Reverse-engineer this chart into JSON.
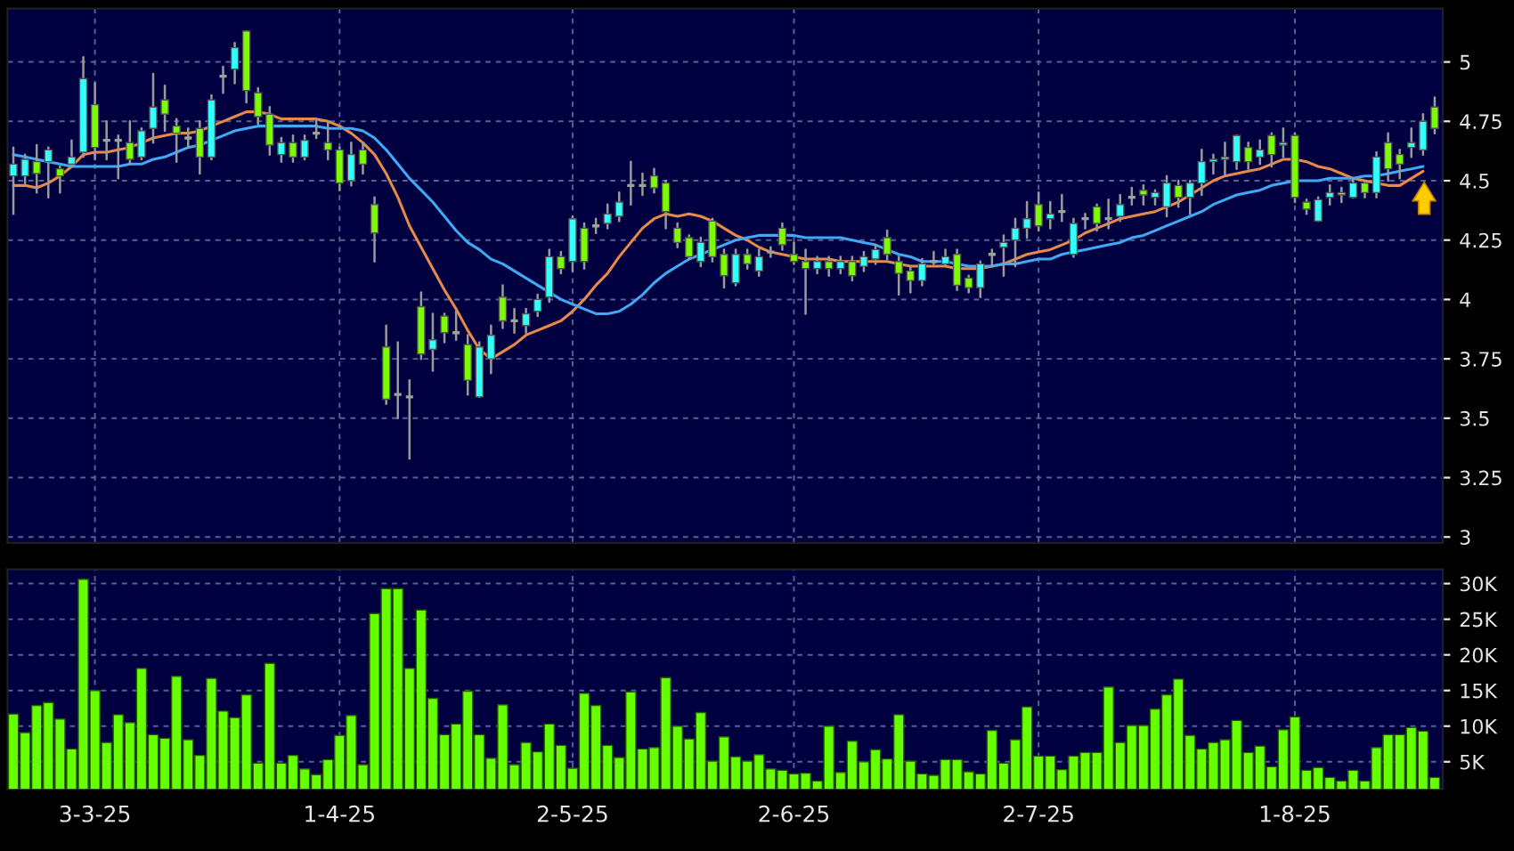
{
  "chart_data": [
    {
      "type": "candlestick",
      "categories": [
        null,
        null,
        null,
        null,
        null,
        null,
        null,
        null,
        null,
        null,
        null,
        null,
        null,
        null,
        null,
        null,
        null,
        null,
        null,
        null,
        null,
        null,
        null,
        null,
        null,
        null,
        null,
        null,
        null,
        null,
        null,
        null,
        null,
        null,
        null,
        null,
        null,
        null,
        null,
        null,
        null,
        null,
        null,
        null,
        null,
        null,
        null,
        null,
        null,
        null,
        null,
        null,
        null,
        null,
        null,
        null,
        null,
        null,
        null,
        null,
        null,
        null,
        null,
        null,
        null,
        null,
        null,
        null,
        null,
        null,
        null,
        null,
        null,
        null,
        null,
        null,
        null,
        null,
        null,
        null,
        null,
        null,
        null,
        null,
        null,
        null,
        null,
        null,
        null,
        null,
        null,
        null,
        null,
        null,
        null,
        null,
        null,
        null,
        null,
        null,
        null,
        null,
        null,
        null,
        null,
        null,
        null,
        null,
        null,
        null,
        null,
        null,
        null,
        null,
        null,
        null,
        null,
        null,
        null,
        null,
        null,
        null,
        null
      ],
      "ohlc": [
        [
          4.52,
          4.64,
          4.36,
          4.57
        ],
        [
          4.52,
          4.61,
          4.49,
          4.59
        ],
        [
          4.58,
          4.65,
          4.45,
          4.53
        ],
        [
          4.58,
          4.64,
          4.43,
          4.63
        ],
        [
          4.55,
          4.56,
          4.45,
          4.52
        ],
        [
          4.57,
          4.67,
          4.56,
          4.6
        ],
        [
          4.62,
          5.02,
          4.6,
          4.93
        ],
        [
          4.82,
          4.91,
          4.59,
          4.64
        ],
        [
          4.67,
          4.75,
          4.59,
          4.67
        ],
        [
          4.67,
          4.69,
          4.51,
          4.67
        ],
        [
          4.66,
          4.75,
          4.57,
          4.59
        ],
        [
          4.6,
          4.72,
          4.59,
          4.71
        ],
        [
          4.72,
          4.95,
          4.66,
          4.81
        ],
        [
          4.84,
          4.9,
          4.71,
          4.78
        ],
        [
          4.73,
          4.76,
          4.58,
          4.7
        ],
        [
          4.68,
          4.72,
          4.64,
          4.68
        ],
        [
          4.72,
          4.75,
          4.53,
          4.6
        ],
        [
          4.6,
          4.86,
          4.59,
          4.84
        ],
        [
          4.94,
          4.98,
          4.87,
          4.94
        ],
        [
          4.97,
          5.08,
          4.91,
          5.06
        ],
        [
          5.13,
          5.13,
          4.83,
          4.88
        ],
        [
          4.87,
          4.89,
          4.74,
          4.77
        ],
        [
          4.78,
          4.81,
          4.61,
          4.65
        ],
        [
          4.61,
          4.68,
          4.58,
          4.66
        ],
        [
          4.66,
          4.69,
          4.58,
          4.6
        ],
        [
          4.6,
          4.69,
          4.59,
          4.67
        ],
        [
          4.7,
          4.76,
          4.68,
          4.7
        ],
        [
          4.66,
          4.75,
          4.59,
          4.63
        ],
        [
          4.63,
          4.64,
          4.46,
          4.49
        ],
        [
          4.5,
          4.66,
          4.48,
          4.61
        ],
        [
          4.63,
          4.66,
          4.53,
          4.57
        ],
        [
          4.4,
          4.43,
          4.16,
          4.28
        ],
        [
          3.8,
          3.89,
          3.56,
          3.58
        ],
        [
          3.6,
          3.82,
          3.5,
          3.6
        ],
        [
          3.59,
          3.66,
          3.33,
          3.59
        ],
        [
          3.97,
          4.03,
          3.75,
          3.77
        ],
        [
          3.79,
          3.94,
          3.7,
          3.83
        ],
        [
          3.93,
          3.94,
          3.82,
          3.86
        ],
        [
          3.86,
          3.95,
          3.83,
          3.86
        ],
        [
          3.81,
          3.85,
          3.6,
          3.66
        ],
        [
          3.59,
          3.82,
          3.59,
          3.8
        ],
        [
          3.75,
          3.89,
          3.69,
          3.85
        ],
        [
          4.01,
          4.06,
          3.88,
          3.91
        ],
        [
          3.91,
          3.96,
          3.86,
          3.91
        ],
        [
          3.89,
          3.96,
          3.86,
          3.94
        ],
        [
          3.95,
          4.02,
          3.93,
          4.0
        ],
        [
          4.01,
          4.21,
          3.99,
          4.18
        ],
        [
          4.18,
          4.2,
          4.11,
          4.13
        ],
        [
          4.16,
          4.35,
          4.12,
          4.34
        ],
        [
          4.3,
          4.32,
          4.13,
          4.16
        ],
        [
          4.31,
          4.34,
          4.28,
          4.31
        ],
        [
          4.32,
          4.4,
          4.3,
          4.36
        ],
        [
          4.35,
          4.45,
          4.33,
          4.41
        ],
        [
          4.48,
          4.58,
          4.4,
          4.48
        ],
        [
          4.48,
          4.53,
          4.44,
          4.48
        ],
        [
          4.52,
          4.55,
          4.45,
          4.47
        ],
        [
          4.49,
          4.5,
          4.3,
          4.37
        ],
        [
          4.3,
          4.32,
          4.22,
          4.24
        ],
        [
          4.26,
          4.27,
          4.17,
          4.18
        ],
        [
          4.16,
          4.26,
          4.14,
          4.24
        ],
        [
          4.33,
          4.34,
          4.16,
          4.18
        ],
        [
          4.19,
          4.21,
          4.05,
          4.1
        ],
        [
          4.07,
          4.21,
          4.06,
          4.19
        ],
        [
          4.19,
          4.21,
          4.13,
          4.15
        ],
        [
          4.12,
          4.21,
          4.1,
          4.18
        ],
        [
          4.2,
          4.22,
          4.18,
          4.2
        ],
        [
          4.3,
          4.32,
          4.21,
          4.23
        ],
        [
          4.19,
          4.24,
          4.15,
          4.16
        ],
        [
          4.16,
          4.21,
          3.94,
          4.13
        ],
        [
          4.13,
          4.18,
          4.11,
          4.16
        ],
        [
          4.16,
          4.18,
          4.1,
          4.13
        ],
        [
          4.13,
          4.18,
          4.11,
          4.16
        ],
        [
          4.16,
          4.18,
          4.08,
          4.1
        ],
        [
          4.14,
          4.2,
          4.12,
          4.18
        ],
        [
          4.17,
          4.23,
          4.15,
          4.21
        ],
        [
          4.26,
          4.29,
          4.17,
          4.19
        ],
        [
          4.16,
          4.18,
          4.02,
          4.11
        ],
        [
          4.12,
          4.14,
          4.03,
          4.08
        ],
        [
          4.08,
          4.17,
          4.06,
          4.15
        ],
        [
          4.16,
          4.2,
          4.15,
          4.16
        ],
        [
          4.15,
          4.21,
          4.14,
          4.18
        ],
        [
          4.19,
          4.21,
          4.04,
          4.06
        ],
        [
          4.09,
          4.1,
          4.03,
          4.05
        ],
        [
          4.05,
          4.16,
          4.01,
          4.15
        ],
        [
          4.19,
          4.21,
          4.14,
          4.19
        ],
        [
          4.22,
          4.27,
          4.1,
          4.24
        ],
        [
          4.25,
          4.34,
          4.14,
          4.3
        ],
        [
          4.3,
          4.41,
          4.26,
          4.34
        ],
        [
          4.4,
          4.45,
          4.29,
          4.31
        ],
        [
          4.34,
          4.41,
          4.3,
          4.36
        ],
        [
          4.37,
          4.44,
          4.33,
          4.37
        ],
        [
          4.19,
          4.34,
          4.18,
          4.32
        ],
        [
          4.34,
          4.36,
          4.3,
          4.34
        ],
        [
          4.39,
          4.4,
          4.29,
          4.32
        ],
        [
          4.34,
          4.42,
          4.3,
          4.34
        ],
        [
          4.35,
          4.44,
          4.33,
          4.4
        ],
        [
          4.43,
          4.47,
          4.4,
          4.43
        ],
        [
          4.46,
          4.48,
          4.4,
          4.44
        ],
        [
          4.43,
          4.46,
          4.4,
          4.45
        ],
        [
          4.39,
          4.52,
          4.35,
          4.49
        ],
        [
          4.48,
          4.5,
          4.39,
          4.43
        ],
        [
          4.43,
          4.5,
          4.36,
          4.49
        ],
        [
          4.49,
          4.63,
          4.44,
          4.58
        ],
        [
          4.58,
          4.61,
          4.53,
          4.59
        ],
        [
          4.59,
          4.66,
          4.52,
          4.6
        ],
        [
          4.58,
          4.69,
          4.55,
          4.69
        ],
        [
          4.64,
          4.66,
          4.55,
          4.58
        ],
        [
          4.6,
          4.67,
          4.57,
          4.63
        ],
        [
          4.69,
          4.7,
          4.56,
          4.61
        ],
        [
          4.65,
          4.72,
          4.6,
          4.66
        ],
        [
          4.69,
          4.7,
          4.41,
          4.43
        ],
        [
          4.41,
          4.42,
          4.36,
          4.38
        ],
        [
          4.33,
          4.43,
          4.33,
          4.42
        ],
        [
          4.43,
          4.48,
          4.4,
          4.45
        ],
        [
          4.45,
          4.47,
          4.41,
          4.44
        ],
        [
          4.43,
          4.51,
          4.43,
          4.49
        ],
        [
          4.49,
          4.5,
          4.43,
          4.45
        ],
        [
          4.45,
          4.62,
          4.43,
          4.6
        ],
        [
          4.66,
          4.7,
          4.5,
          4.55
        ],
        [
          4.61,
          4.63,
          4.51,
          4.57
        ],
        [
          4.64,
          4.72,
          4.6,
          4.66
        ],
        [
          4.63,
          4.78,
          4.61,
          4.75
        ],
        [
          4.81,
          4.85,
          4.7,
          4.72
        ]
      ],
      "colors": [
        "#33ffff",
        "#33ffff",
        "#7cfc00",
        "#33ffff",
        "#7cfc00",
        "#33ffff",
        "#33ffff",
        "#7cfc00",
        "#a0a0a0",
        "#a0a0a0",
        "#7cfc00",
        "#33ffff",
        "#33ffff",
        "#7cfc00",
        "#7cfc00",
        "#a0a0a0",
        "#7cfc00",
        "#33ffff",
        "#a0a0a0",
        "#33ffff",
        "#7cfc00",
        "#7cfc00",
        "#7cfc00",
        "#33ffff",
        "#7cfc00",
        "#33ffff",
        "#a0a0a0",
        "#7cfc00",
        "#7cfc00",
        "#33ffff",
        "#7cfc00",
        "#7cfc00",
        "#7cfc00",
        "#a0a0a0",
        "#a0a0a0",
        "#7cfc00",
        "#33ffff",
        "#7cfc00",
        "#a0a0a0",
        "#7cfc00",
        "#33ffff",
        "#33ffff",
        "#7cfc00",
        "#a0a0a0",
        "#33ffff",
        "#33ffff",
        "#33ffff",
        "#7cfc00",
        "#33ffff",
        "#7cfc00",
        "#a0a0a0",
        "#33ffff",
        "#33ffff",
        "#a0a0a0",
        "#a0a0a0",
        "#7cfc00",
        "#7cfc00",
        "#7cfc00",
        "#7cfc00",
        "#33ffff",
        "#7cfc00",
        "#7cfc00",
        "#33ffff",
        "#7cfc00",
        "#33ffff",
        "#a0a0a0",
        "#7cfc00",
        "#7cfc00",
        "#7cfc00",
        "#33ffff",
        "#7cfc00",
        "#33ffff",
        "#7cfc00",
        "#33ffff",
        "#33ffff",
        "#7cfc00",
        "#7cfc00",
        "#7cfc00",
        "#33ffff",
        "#a0a0a0",
        "#33ffff",
        "#7cfc00",
        "#7cfc00",
        "#33ffff",
        "#a0a0a0",
        "#33ffff",
        "#33ffff",
        "#33ffff",
        "#7cfc00",
        "#33ffff",
        "#a0a0a0",
        "#33ffff",
        "#a0a0a0",
        "#7cfc00",
        "#a0a0a0",
        "#33ffff",
        "#a0a0a0",
        "#7cfc00",
        "#33ffff",
        "#33ffff",
        "#7cfc00",
        "#33ffff",
        "#33ffff",
        "#33ffff",
        "#33ffff",
        "#33ffff",
        "#7cfc00",
        "#33ffff",
        "#7cfc00",
        "#33ffff",
        "#7cfc00",
        "#7cfc00",
        "#33ffff",
        "#33ffff",
        "#7cfc00",
        "#33ffff",
        "#7cfc00",
        "#33ffff",
        "#7cfc00",
        "#7cfc00",
        "#33ffff",
        "#33ffff",
        "#7cfc00"
      ],
      "series": [
        {
          "type": "line",
          "color": "#e8894a",
          "values": [
            4.48,
            4.48,
            4.47,
            4.49,
            4.52,
            4.56,
            4.61,
            4.62,
            4.62,
            4.63,
            4.64,
            4.66,
            4.68,
            4.69,
            4.7,
            4.7,
            4.71,
            4.73,
            4.75,
            4.77,
            4.79,
            4.79,
            4.78,
            4.76,
            4.76,
            4.76,
            4.76,
            4.75,
            4.73,
            4.7,
            4.66,
            4.61,
            4.53,
            4.43,
            4.31,
            4.22,
            4.13,
            4.04,
            3.96,
            3.87,
            3.79,
            3.75,
            3.78,
            3.81,
            3.85,
            3.87,
            3.89,
            3.91,
            3.95,
            4.0,
            4.06,
            4.11,
            4.18,
            4.24,
            4.3,
            4.34,
            4.36,
            4.35,
            4.36,
            4.35,
            4.33,
            4.3,
            4.27,
            4.25,
            4.22,
            4.2,
            4.19,
            4.18,
            4.17,
            4.17,
            4.17,
            4.16,
            4.16,
            4.16,
            4.16,
            4.16,
            4.15,
            4.14,
            4.14,
            4.14,
            4.14,
            4.13,
            4.13,
            4.13,
            4.14,
            4.15,
            4.17,
            4.19,
            4.2,
            4.21,
            4.23,
            4.25,
            4.28,
            4.3,
            4.32,
            4.34,
            4.35,
            4.36,
            4.37,
            4.39,
            4.41,
            4.44,
            4.47,
            4.5,
            4.52,
            4.53,
            4.54,
            4.55,
            4.57,
            4.59,
            4.59,
            4.58,
            4.56,
            4.55,
            4.53,
            4.51,
            4.5,
            4.49,
            4.48,
            4.48,
            4.51,
            4.54,
            null
          ]
        },
        {
          "type": "line",
          "color": "#3fa9f5",
          "values": [
            4.61,
            4.6,
            4.59,
            4.58,
            4.57,
            4.56,
            4.56,
            4.56,
            4.56,
            4.56,
            4.57,
            4.57,
            4.59,
            4.6,
            4.62,
            4.64,
            4.65,
            4.67,
            4.69,
            4.71,
            4.72,
            4.73,
            4.73,
            4.73,
            4.73,
            4.73,
            4.73,
            4.72,
            4.72,
            4.72,
            4.71,
            4.68,
            4.63,
            4.57,
            4.51,
            4.46,
            4.41,
            4.35,
            4.29,
            4.24,
            4.21,
            4.17,
            4.15,
            4.12,
            4.09,
            4.06,
            4.03,
            4.0,
            3.98,
            3.96,
            3.94,
            3.94,
            3.95,
            3.98,
            4.02,
            4.07,
            4.11,
            4.14,
            4.17,
            4.19,
            4.21,
            4.23,
            4.25,
            4.26,
            4.27,
            4.27,
            4.27,
            4.27,
            4.26,
            4.26,
            4.26,
            4.26,
            4.25,
            4.24,
            4.23,
            4.21,
            4.19,
            4.18,
            4.16,
            4.16,
            4.16,
            4.15,
            4.14,
            4.14,
            4.14,
            4.15,
            4.15,
            4.16,
            4.17,
            4.17,
            4.19,
            4.2,
            4.21,
            4.22,
            4.23,
            4.24,
            4.26,
            4.27,
            4.29,
            4.31,
            4.33,
            4.35,
            4.37,
            4.4,
            4.42,
            4.44,
            4.45,
            4.46,
            4.48,
            4.49,
            4.5,
            4.5,
            4.5,
            4.51,
            4.51,
            4.51,
            4.52,
            4.52,
            4.53,
            4.54,
            4.55,
            4.56,
            null
          ]
        }
      ],
      "ylim": [
        2.975,
        5.225
      ],
      "yticks": [
        3,
        3.25,
        3.5,
        3.75,
        4,
        4.25,
        4.5,
        4.75,
        5
      ],
      "grid": true,
      "tick_labels": "y"
    },
    {
      "type": "bar",
      "categories": [
        null,
        null,
        null,
        null,
        null,
        null,
        null,
        "3-3-25",
        null,
        null,
        null,
        null,
        null,
        null,
        null,
        null,
        null,
        null,
        null,
        null,
        null,
        null,
        null,
        null,
        null,
        null,
        null,
        null,
        "1-4-25",
        null,
        null,
        null,
        null,
        null,
        null,
        null,
        null,
        null,
        null,
        null,
        null,
        null,
        null,
        null,
        null,
        null,
        null,
        null,
        "2-5-25",
        null,
        null,
        null,
        null,
        null,
        null,
        null,
        null,
        null,
        null,
        null,
        null,
        null,
        null,
        null,
        null,
        null,
        null,
        "2-6-25",
        null,
        null,
        null,
        null,
        null,
        null,
        null,
        null,
        null,
        null,
        null,
        null,
        null,
        null,
        null,
        null,
        null,
        null,
        null,
        null,
        "2-7-25",
        null,
        null,
        null,
        null,
        null,
        null,
        null,
        null,
        null,
        null,
        null,
        null,
        null,
        null,
        null,
        null,
        null,
        null,
        null,
        null,
        null,
        "1-8-25",
        null,
        null,
        null,
        null,
        null,
        null,
        null,
        null,
        null,
        null,
        null,
        null
      ],
      "values": [
        11700,
        9100,
        12900,
        13300,
        11000,
        6800,
        30600,
        15000,
        7700,
        11600,
        10500,
        18100,
        8800,
        8300,
        17000,
        8100,
        5900,
        16700,
        12100,
        11200,
        14400,
        4800,
        18800,
        4800,
        5900,
        4000,
        3200,
        5300,
        8700,
        11500,
        4600,
        25800,
        29300,
        29300,
        18100,
        26300,
        13900,
        8800,
        10300,
        14900,
        8800,
        5500,
        13000,
        4600,
        7700,
        6400,
        10300,
        7300,
        4100,
        14600,
        12900,
        7300,
        5600,
        14800,
        6800,
        7000,
        16800,
        10000,
        8200,
        11900,
        5100,
        8500,
        5700,
        5100,
        6000,
        4000,
        3800,
        3300,
        3400,
        2300,
        10000,
        3500,
        7900,
        5000,
        6700,
        5400,
        11600,
        5100,
        3300,
        3100,
        5300,
        5300,
        3600,
        3300,
        9400,
        4800,
        8100,
        12700,
        5800,
        5800,
        3900,
        5800,
        6300,
        6300,
        15500,
        7700,
        10100,
        10100,
        12400,
        14400,
        16600,
        8700,
        6800,
        7700,
        8100,
        10800,
        6300,
        7200,
        4300,
        9500,
        11300,
        3800,
        4200,
        2800,
        2300,
        3800,
        2300,
        7000,
        8800,
        8800,
        9800,
        9300,
        2800
      ],
      "color": "#66ff00",
      "ylim": [
        1200,
        32000
      ],
      "yticks": [
        {
          "value": 5000,
          "label": "5K"
        },
        {
          "value": 10000,
          "label": "10K"
        },
        {
          "value": 15000,
          "label": "15K"
        },
        {
          "value": 20000,
          "label": "20K"
        },
        {
          "value": 25000,
          "label": "25K"
        },
        {
          "value": 30000,
          "label": "30K"
        }
      ],
      "grid": true
    }
  ]
}
